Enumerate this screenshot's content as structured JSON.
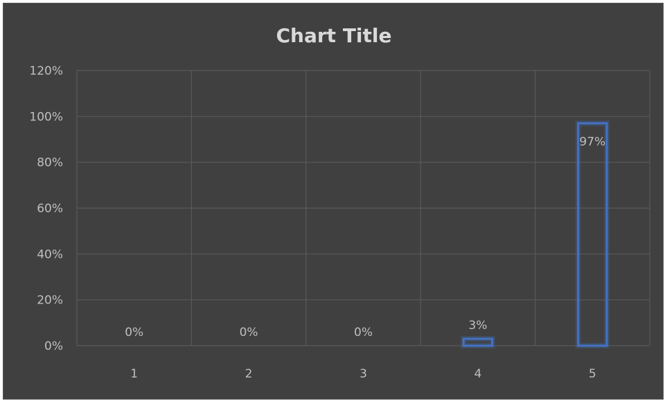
{
  "chart_data": {
    "type": "bar",
    "title": "Chart Title",
    "categories": [
      "1",
      "2",
      "3",
      "4",
      "5"
    ],
    "values": [
      0,
      0,
      0,
      0.03,
      0.97
    ],
    "data_labels": [
      "0%",
      "0%",
      "0%",
      "3%",
      "97%"
    ],
    "xlabel": "",
    "ylabel": "",
    "ylim": [
      0,
      1.2
    ],
    "y_ticks": [
      "0%",
      "20%",
      "40%",
      "60%",
      "80%",
      "100%",
      "120%"
    ],
    "grid": true,
    "legend": "none",
    "bar_style": "outline",
    "bar_color": "#4472c4",
    "background_color": "#404040"
  }
}
